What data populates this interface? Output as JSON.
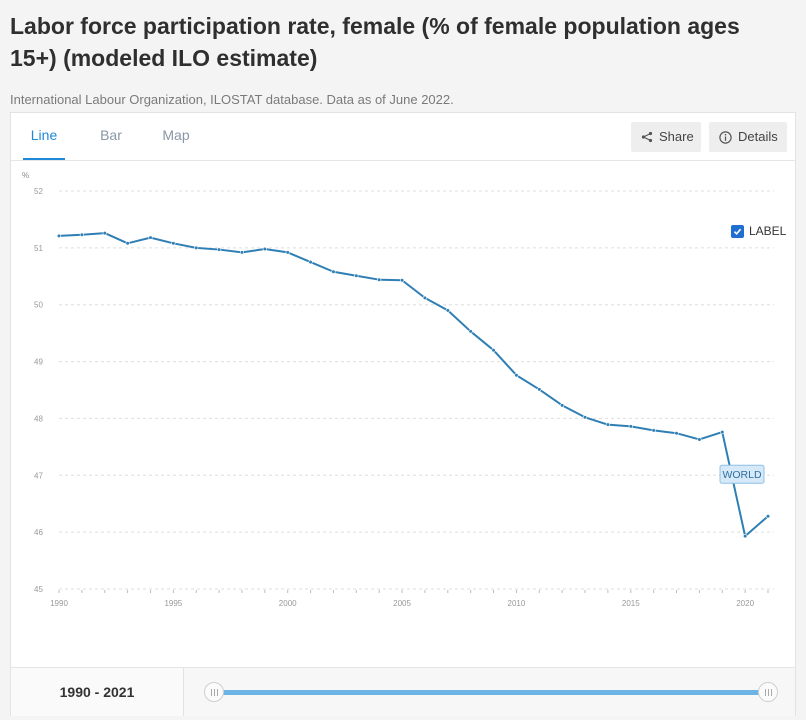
{
  "header": {
    "title": "Labor force participation rate, female (% of female population ages 15+) (modeled ILO estimate)",
    "subtitle": "International Labour Organization, ILOSTAT database. Data as of June 2022."
  },
  "tabs": [
    {
      "label": "Line",
      "active": true
    },
    {
      "label": "Bar",
      "active": false
    },
    {
      "label": "Map",
      "active": false
    }
  ],
  "actions": {
    "share_label": "Share",
    "details_label": "Details"
  },
  "label_toggle": {
    "label": "LABEL",
    "checked": true
  },
  "colors": {
    "accent": "#1f8ad6",
    "line": "#2f7fb5",
    "label_fill": "#d6e9f8",
    "slider": "#6cb4e4"
  },
  "footer": {
    "range_label": "1990 - 2021"
  },
  "chart_data": {
    "type": "line",
    "ylabel": "%",
    "xlabel": "",
    "ylim": [
      45,
      52
    ],
    "xlim": [
      1990,
      2021
    ],
    "yticks": [
      45,
      46,
      47,
      48,
      49,
      50,
      51,
      52
    ],
    "xticks": [
      1990,
      1995,
      2000,
      2005,
      2010,
      2015,
      2020
    ],
    "grid": true,
    "x": [
      1990,
      1991,
      1992,
      1993,
      1994,
      1995,
      1996,
      1997,
      1998,
      1999,
      2000,
      2001,
      2002,
      2003,
      2004,
      2005,
      2006,
      2007,
      2008,
      2009,
      2010,
      2011,
      2012,
      2013,
      2014,
      2015,
      2016,
      2017,
      2018,
      2019,
      2020,
      2021
    ],
    "series": [
      {
        "name": "WORLD",
        "values": [
          51.21,
          51.23,
          51.26,
          51.08,
          51.18,
          51.08,
          51.0,
          50.97,
          50.92,
          50.98,
          50.92,
          50.75,
          50.58,
          50.51,
          50.44,
          50.43,
          50.12,
          49.9,
          49.53,
          49.2,
          48.76,
          48.51,
          48.23,
          48.02,
          47.89,
          47.86,
          47.79,
          47.74,
          47.63,
          47.76,
          45.93,
          46.28
        ]
      }
    ]
  }
}
